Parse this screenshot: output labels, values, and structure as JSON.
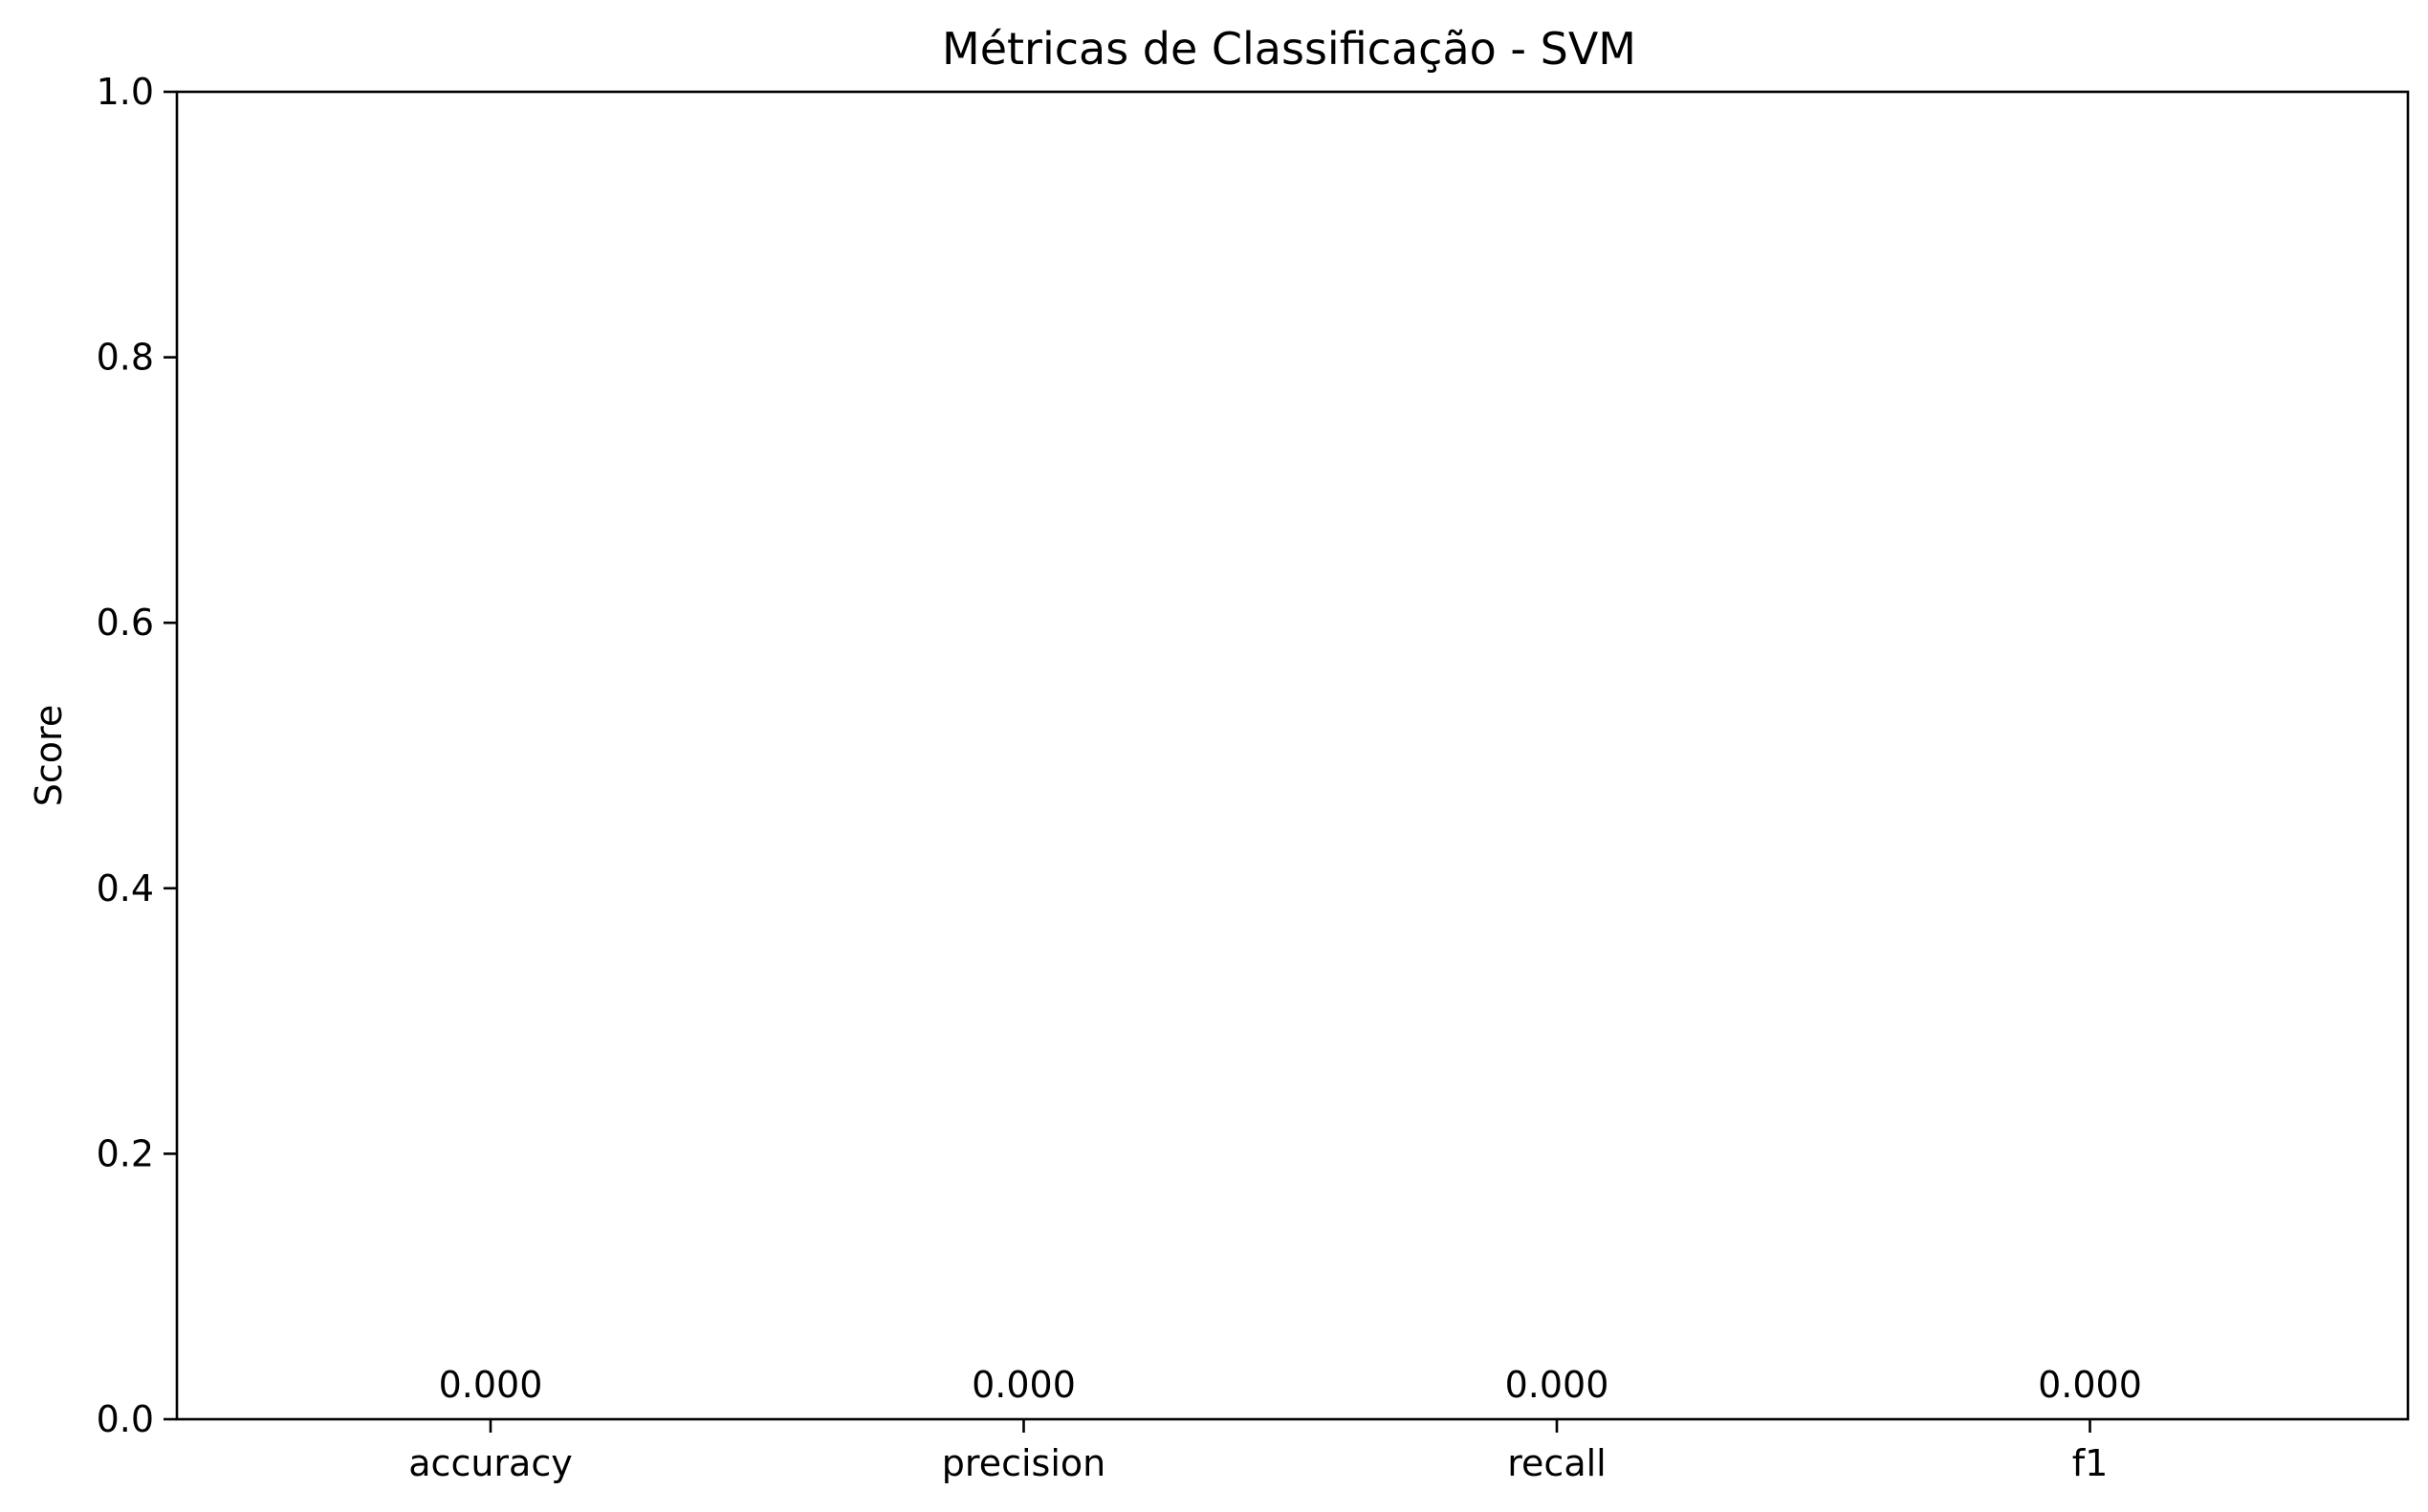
{
  "chart_data": {
    "type": "bar",
    "title": "Métricas de Classificação - SVM",
    "xlabel": "",
    "ylabel": "Score",
    "categories": [
      "accuracy",
      "precision",
      "recall",
      "f1"
    ],
    "values": [
      0.0,
      0.0,
      0.0,
      0.0
    ],
    "value_labels": [
      "0.000",
      "0.000",
      "0.000",
      "0.000"
    ],
    "ylim": [
      0,
      1.0
    ],
    "yticks": [
      0.0,
      0.2,
      0.4,
      0.6,
      0.8,
      1.0
    ],
    "ytick_labels": [
      "0.0",
      "0.2",
      "0.4",
      "0.6",
      "0.8",
      "1.0"
    ],
    "bar_color": "#1f77b4",
    "grid": false,
    "legend": "none"
  }
}
